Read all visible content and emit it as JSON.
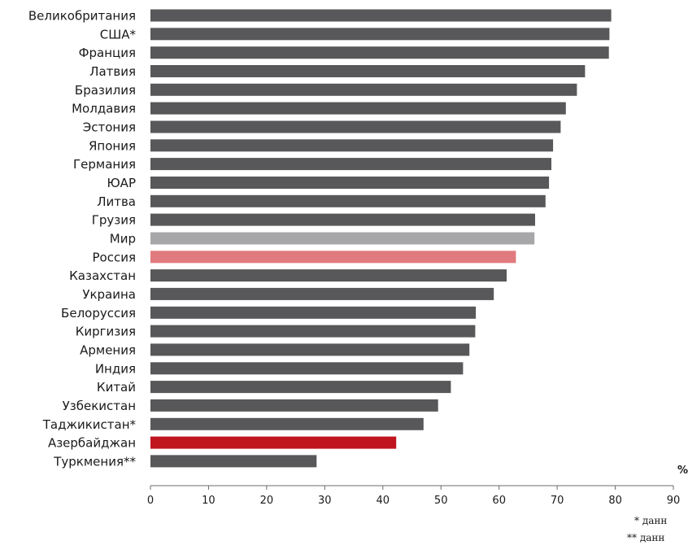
{
  "chart_data": {
    "type": "bar",
    "orientation": "horizontal",
    "categories": [
      "Великобритания",
      "США*",
      "Франция",
      "Латвия",
      "Бразилия",
      "Молдавия",
      "Эстония",
      "Япония",
      "Германия",
      "ЮАР",
      "Литва",
      "Грузия",
      "Мир",
      "Россия",
      "Казахстан",
      "Украина",
      "Белоруссия",
      "Киргизия",
      "Армения",
      "Индия",
      "Китай",
      "Узбекистан",
      "Таджикистан*",
      "Азербайджан",
      "Туркмения**"
    ],
    "values": [
      79.3,
      79.0,
      78.9,
      74.8,
      73.4,
      71.5,
      70.6,
      69.3,
      69.0,
      68.6,
      68.0,
      66.2,
      66.1,
      62.9,
      61.3,
      59.1,
      56.0,
      55.9,
      54.9,
      53.8,
      51.7,
      49.5,
      47.0,
      42.3,
      28.6
    ],
    "colors": [
      "#58585a",
      "#58585a",
      "#58585a",
      "#58585a",
      "#58585a",
      "#58585a",
      "#58585a",
      "#58585a",
      "#58585a",
      "#58585a",
      "#58585a",
      "#58585a",
      "#a7a7a9",
      "#e07a7e",
      "#58585a",
      "#58585a",
      "#58585a",
      "#58585a",
      "#58585a",
      "#58585a",
      "#58585a",
      "#58585a",
      "#58585a",
      "#c0141f",
      "#58585a"
    ],
    "xlim": [
      0,
      90
    ],
    "xticks": [
      "0",
      "10",
      "20",
      "30",
      "40",
      "50",
      "60",
      "70",
      "80",
      "90"
    ],
    "unit_label": "%",
    "grid": false,
    "legend": "none"
  },
  "footnotes": [
    "* данн",
    "** данн"
  ]
}
